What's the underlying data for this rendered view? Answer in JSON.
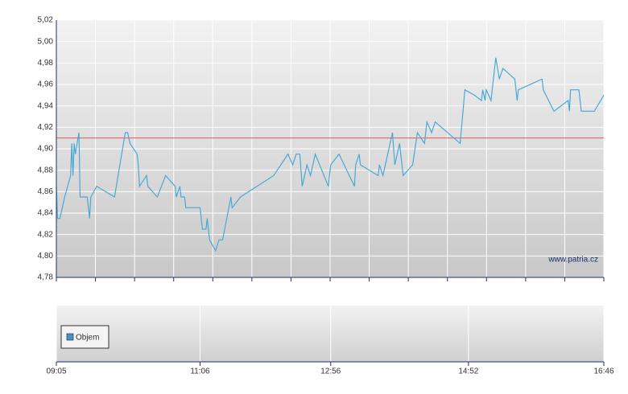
{
  "chart_data": {
    "type": "line",
    "x": [
      0,
      1,
      3,
      7,
      12,
      13,
      14,
      15,
      16,
      19,
      20,
      26,
      28,
      29,
      34,
      49,
      58,
      60,
      62,
      68,
      69,
      70,
      76,
      77,
      85,
      92,
      100,
      101,
      104,
      105,
      108,
      109,
      121,
      123,
      126,
      127,
      129,
      134,
      137,
      140,
      147,
      148,
      155,
      183,
      195,
      199,
      202,
      205,
      207,
      211,
      214,
      218,
      229,
      231,
      238,
      251,
      252,
      255,
      256,
      271,
      272,
      275,
      283,
      285,
      289,
      292,
      300,
      304,
      310,
      312,
      316,
      319,
      340,
      344,
      352,
      358,
      359,
      361,
      362,
      366,
      370,
      373,
      376,
      386,
      388,
      389,
      409,
      410,
      419,
      431,
      432,
      433,
      440,
      442,
      453,
      461
    ],
    "values": [
      4.865,
      4.835,
      4.835,
      4.855,
      4.875,
      4.905,
      4.875,
      4.905,
      4.895,
      4.915,
      4.855,
      4.855,
      4.835,
      4.855,
      4.865,
      4.855,
      4.915,
      4.915,
      4.905,
      4.895,
      4.885,
      4.865,
      4.875,
      4.865,
      4.855,
      4.875,
      4.865,
      4.855,
      4.865,
      4.855,
      4.855,
      4.845,
      4.845,
      4.825,
      4.825,
      4.835,
      4.815,
      4.805,
      4.815,
      4.815,
      4.855,
      4.845,
      4.855,
      4.875,
      4.895,
      4.885,
      4.895,
      4.895,
      4.865,
      4.885,
      4.875,
      4.895,
      4.865,
      4.885,
      4.895,
      4.865,
      4.885,
      4.895,
      4.885,
      4.875,
      4.885,
      4.875,
      4.915,
      4.885,
      4.905,
      4.875,
      4.885,
      4.915,
      4.905,
      4.925,
      4.915,
      4.925,
      4.905,
      4.955,
      4.95,
      4.945,
      4.955,
      4.945,
      4.955,
      4.945,
      4.985,
      4.965,
      4.975,
      4.965,
      4.945,
      4.955,
      4.965,
      4.955,
      4.935,
      4.945,
      4.935,
      4.955,
      4.955,
      4.935,
      4.935,
      4.95
    ],
    "color": "#4aa8d8",
    "reference_line": 4.91,
    "reference_color": "#e05a5a",
    "xlim": [
      0,
      461
    ],
    "xticks": [
      {
        "value": 0,
        "label": "09:05"
      },
      {
        "value": 121,
        "label": "11:06"
      },
      {
        "value": 231,
        "label": "12:56"
      },
      {
        "value": 347,
        "label": "14:52"
      },
      {
        "value": 461,
        "label": "16:46"
      }
    ],
    "ylim": [
      4.78,
      5.02
    ],
    "yticks": [
      {
        "value": 4.78,
        "label": "4,78"
      },
      {
        "value": 4.8,
        "label": "4,80"
      },
      {
        "value": 4.82,
        "label": "4,82"
      },
      {
        "value": 4.84,
        "label": "4,84"
      },
      {
        "value": 4.86,
        "label": "4,86"
      },
      {
        "value": 4.88,
        "label": "4,88"
      },
      {
        "value": 4.9,
        "label": "4,90"
      },
      {
        "value": 4.92,
        "label": "4,92"
      },
      {
        "value": 4.94,
        "label": "4,94"
      },
      {
        "value": 4.96,
        "label": "4,96"
      },
      {
        "value": 4.98,
        "label": "4,98"
      },
      {
        "value": 5.0,
        "label": "5,00"
      },
      {
        "value": 5.02,
        "label": "5,02"
      }
    ],
    "grid": true,
    "source": "www.patria.cz",
    "volume_legend": "Objem",
    "volume_color": "#4a90c8"
  }
}
